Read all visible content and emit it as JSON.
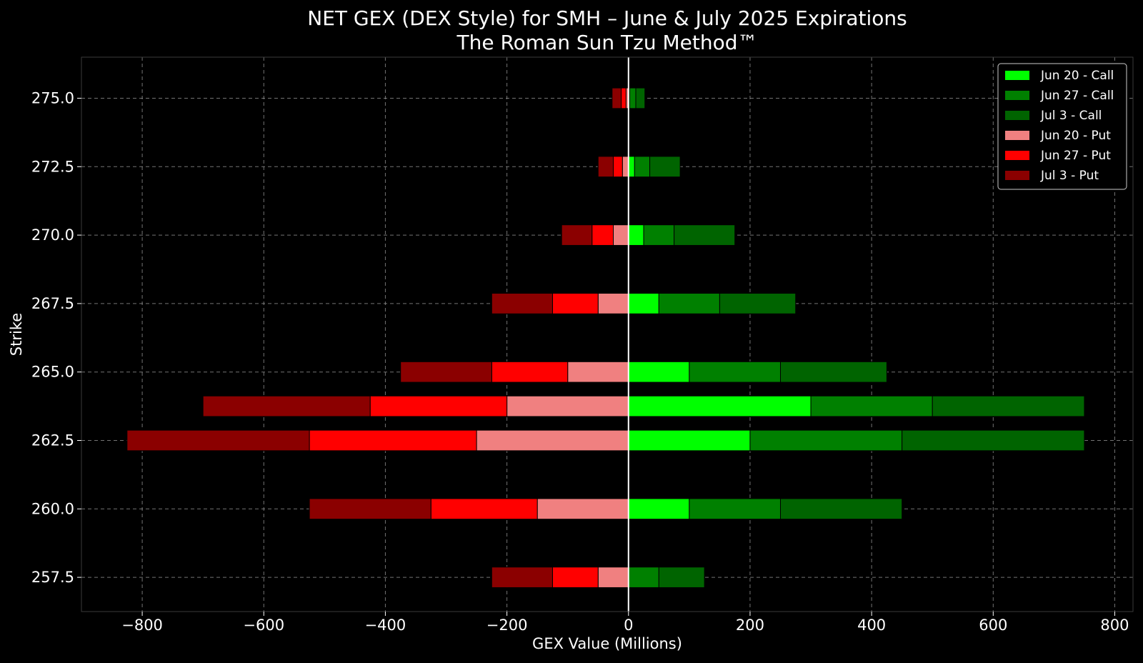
{
  "chart_data": {
    "type": "bar",
    "orientation": "horizontal",
    "stacked": true,
    "title": "NET GEX (DEX Style) for SMH – June & July 2025 Expirations",
    "subtitle": "The Roman Sun Tzu Method™",
    "xlabel": "GEX Value (Millions)",
    "ylabel": "Strike",
    "xlim": [
      -900,
      830
    ],
    "ylim": [
      256.25,
      276.5
    ],
    "x_ticks": [
      -800,
      -600,
      -400,
      -200,
      0,
      200,
      400,
      600,
      800
    ],
    "x_tick_labels": [
      "−800",
      "−600",
      "−400",
      "−200",
      "0",
      "200",
      "400",
      "600",
      "800"
    ],
    "y_ticks": [
      257.5,
      260.0,
      262.5,
      265.0,
      267.5,
      270.0,
      272.5,
      275.0
    ],
    "y_tick_labels": [
      "257.5",
      "260.0",
      "262.5",
      "265.0",
      "267.5",
      "270.0",
      "272.5",
      "275.0"
    ],
    "grid": true,
    "legend_position": "top-right",
    "zero_line_color": "#ffffff",
    "strikes": [
      257.5,
      260.0,
      262.5,
      263.75,
      265.0,
      267.5,
      270.0,
      272.5,
      275.0
    ],
    "series": [
      {
        "name": "Jun 20 - Call",
        "color": "#00ff00",
        "values": [
          0,
          100,
          200,
          300,
          100,
          50,
          25,
          10,
          2
        ]
      },
      {
        "name": "Jun 27 - Call",
        "color": "#008000",
        "values": [
          50,
          150,
          250,
          200,
          150,
          100,
          50,
          25,
          10
        ]
      },
      {
        "name": "Jul 3 - Call",
        "color": "#006400",
        "values": [
          75,
          200,
          300,
          250,
          175,
          125,
          100,
          50,
          15
        ]
      },
      {
        "name": "Jun 20 - Put",
        "color": "#f08080",
        "values": [
          -50,
          -150,
          -250,
          -200,
          -100,
          -50,
          -25,
          -10,
          -4
        ]
      },
      {
        "name": "Jun 27 - Put",
        "color": "#ff0000",
        "values": [
          -75,
          -175,
          -275,
          -225,
          -125,
          -75,
          -35,
          -15,
          -8
        ]
      },
      {
        "name": "Jul 3 - Put",
        "color": "#8b0000",
        "values": [
          -100,
          -200,
          -300,
          -275,
          -150,
          -100,
          -50,
          -25,
          -15
        ]
      }
    ]
  }
}
